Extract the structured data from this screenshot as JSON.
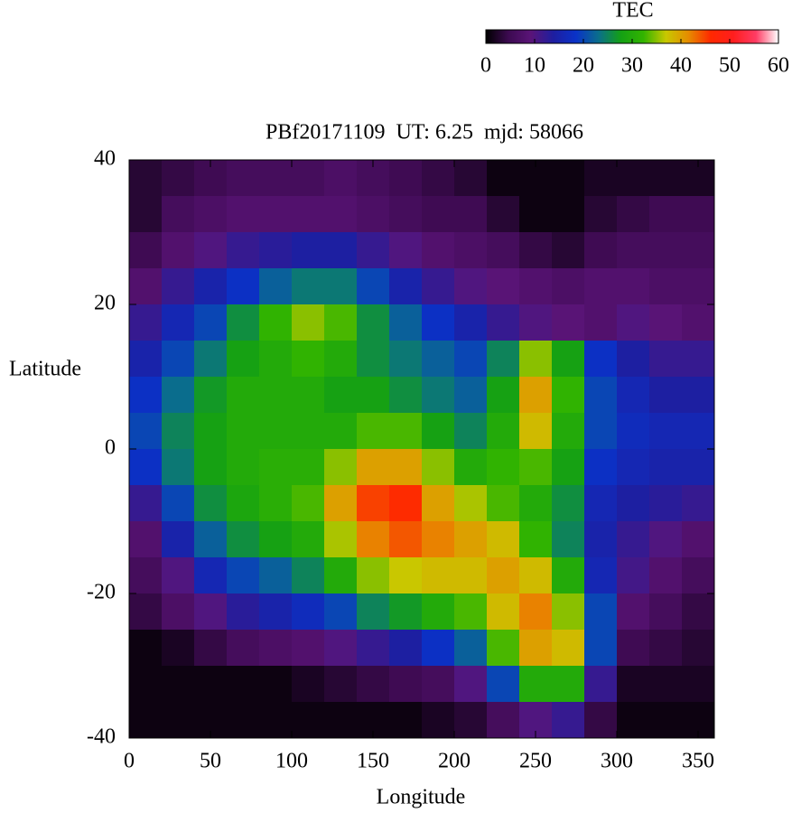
{
  "chart_data": {
    "type": "heatmap",
    "title": "PBf20171109  UT: 6.25  mjd: 58066",
    "xlabel": "Longitude",
    "ylabel": "Latitude",
    "colorbar_label": "TEC",
    "x": [
      10,
      30,
      50,
      70,
      90,
      110,
      130,
      150,
      170,
      190,
      210,
      230,
      250,
      270,
      290,
      310,
      330,
      350
    ],
    "y": [
      37.5,
      32.5,
      27.5,
      22.5,
      17.5,
      12.5,
      7.5,
      2.5,
      -2.5,
      -7.5,
      -12.5,
      -17.5,
      -22.5,
      -27.5,
      -32.5,
      -37.5
    ],
    "z": [
      [
        3,
        3,
        5,
        8,
        12,
        15,
        18,
        20,
        18,
        12,
        8,
        6,
        4,
        1,
        1,
        1
      ],
      [
        4,
        6,
        8,
        12,
        16,
        20,
        23,
        25,
        24,
        20,
        15,
        10,
        7,
        2,
        1,
        1
      ],
      [
        5,
        7,
        10,
        15,
        20,
        24,
        27,
        28,
        28,
        26,
        22,
        16,
        10,
        4,
        1,
        1
      ],
      [
        6,
        8,
        12,
        18,
        26,
        28,
        30,
        30,
        30,
        29,
        26,
        20,
        13,
        6,
        1,
        1
      ],
      [
        6,
        8,
        13,
        22,
        32,
        30,
        30,
        30,
        31,
        31,
        28,
        22,
        15,
        7,
        1,
        1
      ],
      [
        6,
        8,
        14,
        24,
        35,
        32,
        30,
        30,
        31,
        33,
        30,
        25,
        17,
        8,
        2,
        1
      ],
      [
        7,
        8,
        14,
        24,
        33,
        30,
        28,
        30,
        35,
        40,
        36,
        30,
        20,
        10,
        3,
        1
      ],
      [
        6,
        7,
        12,
        20,
        26,
        26,
        28,
        33,
        40,
        45,
        42,
        35,
        25,
        12,
        4,
        1
      ],
      [
        5,
        6,
        10,
        15,
        22,
        24,
        26,
        33,
        40,
        46,
        44,
        37,
        27,
        14,
        5,
        1
      ],
      [
        4,
        5,
        8,
        12,
        18,
        22,
        24,
        28,
        35,
        40,
        42,
        38,
        30,
        18,
        6,
        2
      ],
      [
        3,
        5,
        7,
        10,
        15,
        20,
        22,
        25,
        30,
        36,
        40,
        38,
        33,
        22,
        10,
        3
      ],
      [
        1,
        3,
        6,
        9,
        12,
        25,
        28,
        30,
        32,
        33,
        38,
        40,
        38,
        33,
        20,
        6
      ],
      [
        1,
        1,
        4,
        8,
        10,
        35,
        40,
        38,
        33,
        30,
        32,
        38,
        42,
        40,
        30,
        10
      ],
      [
        1,
        1,
        3,
        7,
        9,
        28,
        32,
        30,
        28,
        26,
        25,
        30,
        35,
        38,
        30,
        12
      ],
      [
        2,
        3,
        5,
        8,
        8,
        18,
        20,
        20,
        18,
        16,
        15,
        16,
        20,
        20,
        12,
        4
      ],
      [
        2,
        4,
        6,
        8,
        10,
        14,
        16,
        17,
        16,
        14,
        12,
        11,
        8,
        5,
        2,
        1
      ],
      [
        2,
        5,
        6,
        7,
        9,
        12,
        14,
        16,
        15,
        13,
        10,
        8,
        6,
        4,
        2,
        1
      ],
      [
        2,
        5,
        6,
        7,
        8,
        12,
        14,
        16,
        15,
        12,
        8,
        6,
        4,
        3,
        2,
        1
      ]
    ],
    "xlim": [
      0,
      360
    ],
    "ylim": [
      -40,
      40
    ],
    "xticks": [
      0,
      50,
      100,
      150,
      200,
      250,
      300,
      350
    ],
    "yticks": [
      -40,
      -20,
      0,
      20,
      40
    ],
    "zlim": [
      0,
      60
    ],
    "zticks": [
      0,
      10,
      20,
      30,
      40,
      50,
      60
    ],
    "colormap": [
      "#000000",
      "#3c0a50",
      "#5a1478",
      "#1e1ea0",
      "#0a32c8",
      "#0a6e8c",
      "#14a014",
      "#32b400",
      "#c8c800",
      "#e68c00",
      "#ff2800",
      "#ff1e1e",
      "#ff3c64",
      "#ffffff"
    ]
  }
}
